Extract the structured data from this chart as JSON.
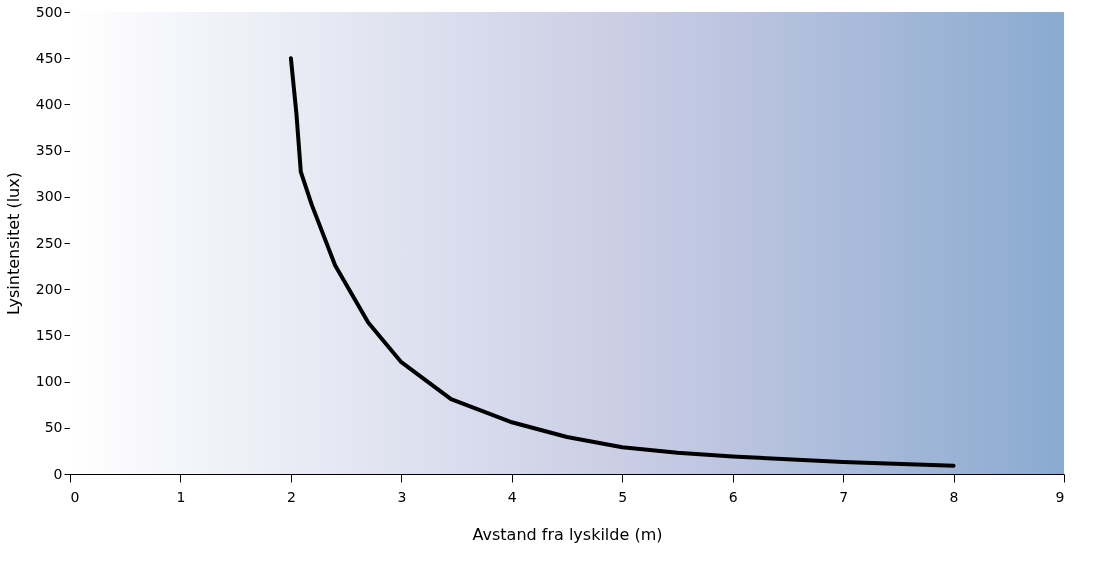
{
  "chart_data": {
    "type": "line",
    "xlabel": "Avstand fra lyskilde (m)",
    "ylabel": "Lysintensitet (lux)",
    "x": [
      2,
      2.05,
      2.09,
      2.19,
      2.4,
      2.7,
      3,
      3.45,
      4,
      4.5,
      5,
      5.5,
      6,
      7,
      8
    ],
    "series": [
      {
        "color": "#000000",
        "values": [
          450,
          390,
          327,
          291,
          226,
          164,
          121,
          81,
          56,
          40,
          29,
          23,
          19,
          13,
          9
        ]
      }
    ],
    "xlim": [
      0,
      9
    ],
    "xticks": [
      0,
      1,
      2,
      3,
      4,
      5,
      6,
      7,
      8,
      9
    ],
    "ylim": [
      0,
      500
    ],
    "yticks": [
      0,
      50,
      100,
      150,
      200,
      250,
      300,
      350,
      400,
      450,
      500
    ],
    "grid": false,
    "legend": false,
    "marker": "none",
    "line_style": "solid"
  }
}
